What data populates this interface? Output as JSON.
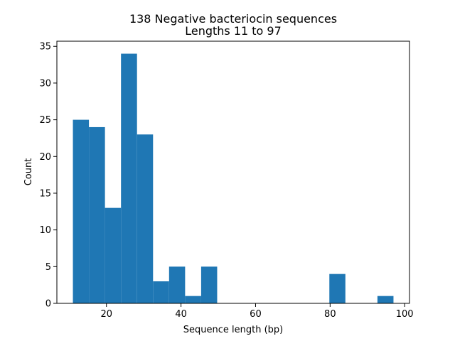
{
  "chart_data": {
    "type": "bar",
    "title_line1": "138 Negative bacteriocin sequences",
    "title_line2": "Lengths 11 to 97",
    "xlabel": "Sequence length (bp)",
    "ylabel": "Count",
    "xlim": [
      6.7,
      101.3
    ],
    "ylim": [
      0,
      35.7
    ],
    "xticks": [
      20,
      40,
      60,
      80,
      100
    ],
    "yticks": [
      0,
      5,
      10,
      15,
      20,
      25,
      30,
      35
    ],
    "bar_color": "#1f77b4",
    "grid": false,
    "bins": [
      {
        "x0": 11.0,
        "x1": 15.3,
        "count": 25
      },
      {
        "x0": 15.3,
        "x1": 19.6,
        "count": 24
      },
      {
        "x0": 19.6,
        "x1": 23.9,
        "count": 13
      },
      {
        "x0": 23.9,
        "x1": 28.2,
        "count": 34
      },
      {
        "x0": 28.2,
        "x1": 32.5,
        "count": 23
      },
      {
        "x0": 32.5,
        "x1": 36.8,
        "count": 3
      },
      {
        "x0": 36.8,
        "x1": 41.1,
        "count": 5
      },
      {
        "x0": 41.1,
        "x1": 45.4,
        "count": 1
      },
      {
        "x0": 45.4,
        "x1": 49.7,
        "count": 5
      },
      {
        "x0": 49.7,
        "x1": 54.0,
        "count": 0
      },
      {
        "x0": 54.0,
        "x1": 58.3,
        "count": 0
      },
      {
        "x0": 58.3,
        "x1": 62.6,
        "count": 0
      },
      {
        "x0": 62.6,
        "x1": 66.9,
        "count": 0
      },
      {
        "x0": 66.9,
        "x1": 71.2,
        "count": 0
      },
      {
        "x0": 71.2,
        "x1": 75.5,
        "count": 0
      },
      {
        "x0": 75.5,
        "x1": 79.8,
        "count": 0
      },
      {
        "x0": 79.8,
        "x1": 84.1,
        "count": 4
      },
      {
        "x0": 84.1,
        "x1": 88.4,
        "count": 0
      },
      {
        "x0": 88.4,
        "x1": 92.7,
        "count": 0
      },
      {
        "x0": 92.7,
        "x1": 97.0,
        "count": 1
      }
    ]
  }
}
